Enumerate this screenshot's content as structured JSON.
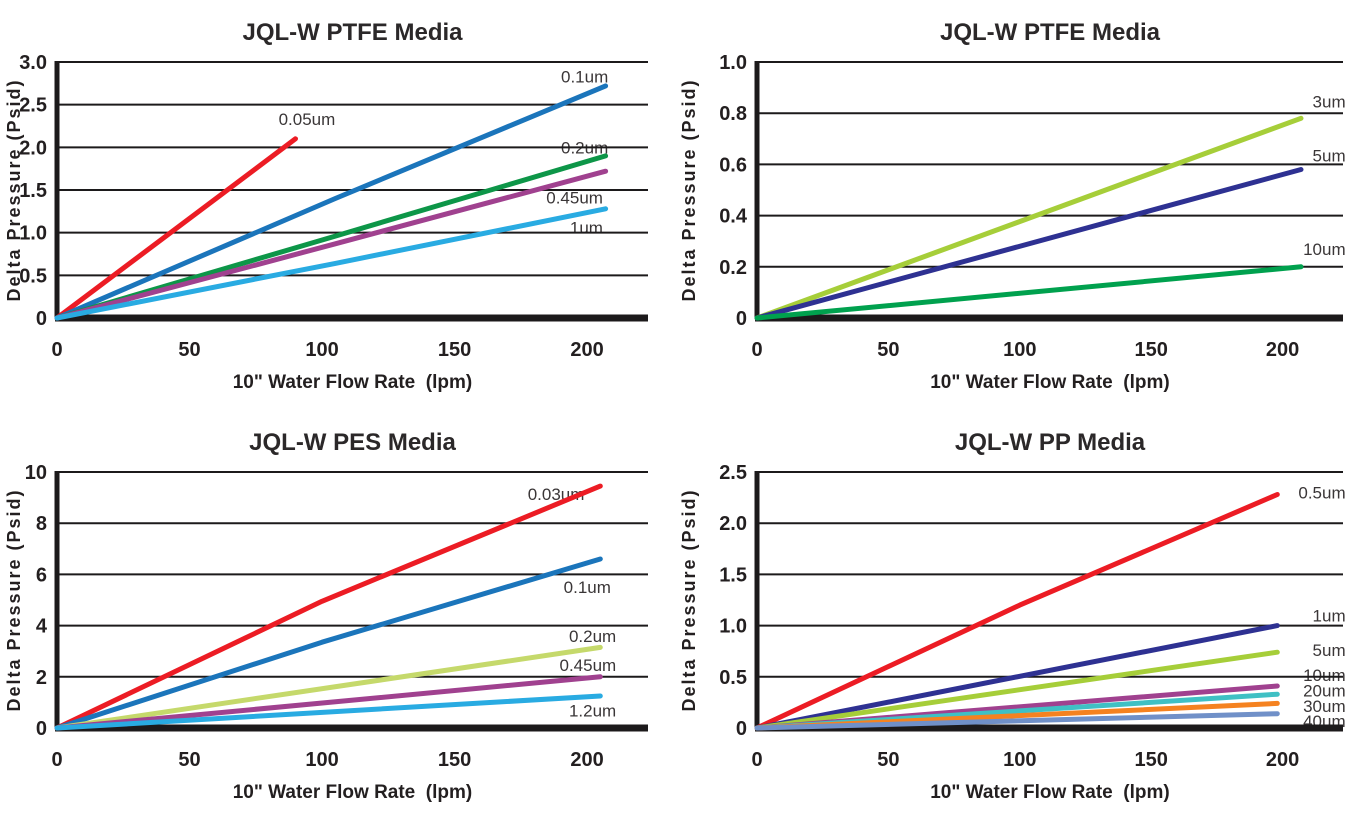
{
  "colors": {
    "background": "#ffffff",
    "grid_line": "#1c1a1b",
    "axis_line": "#1c1a1b",
    "title_text": "#2b2829",
    "tick_text": "#231f20",
    "series_label_text": "#3a3637"
  },
  "chart_data": [
    {
      "type": "line",
      "title": "JQL-W PTFE Media",
      "xlabel": "10\" Water Flow Rate  (lpm)",
      "ylabel": "Delta Pressure (Psid)",
      "xlim": [
        0,
        223
      ],
      "ylim": [
        0,
        3.0
      ],
      "grid": "horizontal",
      "legend_position": "inline-labels",
      "xticks": [
        {
          "v": 0,
          "label": "0"
        },
        {
          "v": 50,
          "label": "50"
        },
        {
          "v": 100,
          "label": "100"
        },
        {
          "v": 150,
          "label": "150"
        },
        {
          "v": 200,
          "label": "200"
        }
      ],
      "yticks": [
        {
          "v": 0,
          "label": "0"
        },
        {
          "v": 0.5,
          "label": "0.5"
        },
        {
          "v": 1.0,
          "label": "1.0"
        },
        {
          "v": 1.5,
          "label": "1.5"
        },
        {
          "v": 2.0,
          "label": "2.0"
        },
        {
          "v": 2.5,
          "label": "2.5"
        },
        {
          "v": 3.0,
          "label": "3.0"
        }
      ],
      "series": [
        {
          "name": "0.05um",
          "color": "#ec1c24",
          "points": [
            [
              0,
              0
            ],
            [
              90,
              2.1
            ]
          ],
          "label": {
            "x": 105,
            "y": 2.33,
            "anchor": "end"
          }
        },
        {
          "name": "0.1um",
          "color": "#1b75bb",
          "points": [
            [
              0,
              0
            ],
            [
              105,
              1.4
            ],
            [
              207,
              2.72
            ]
          ],
          "label": {
            "x": 208,
            "y": 2.83,
            "anchor": "end"
          }
        },
        {
          "name": "0.2um",
          "color": "#0d9648",
          "points": [
            [
              0,
              0
            ],
            [
              105,
              0.96
            ],
            [
              207,
              1.9
            ]
          ],
          "label": {
            "x": 208,
            "y": 2.0,
            "anchor": "end"
          }
        },
        {
          "name": "0.45um",
          "color": "#a0418f",
          "points": [
            [
              0,
              0
            ],
            [
              105,
              0.87
            ],
            [
              207,
              1.72
            ]
          ],
          "label": {
            "x": 206,
            "y": 1.41,
            "anchor": "end"
          }
        },
        {
          "name": "1um",
          "color": "#29abe2",
          "points": [
            [
              0,
              0
            ],
            [
              105,
              0.64
            ],
            [
              207,
              1.28
            ]
          ],
          "label": {
            "x": 206,
            "y": 1.06,
            "anchor": "end"
          }
        }
      ]
    },
    {
      "type": "line",
      "title": "JQL-W PTFE Media",
      "xlabel": "10\" Water Flow Rate  (lpm)",
      "ylabel": "Delta Pressure (Psid)",
      "xlim": [
        0,
        223
      ],
      "ylim": [
        0,
        1.0
      ],
      "grid": "horizontal",
      "legend_position": "inline-labels",
      "xticks": [
        {
          "v": 0,
          "label": "0"
        },
        {
          "v": 50,
          "label": "50"
        },
        {
          "v": 100,
          "label": "100"
        },
        {
          "v": 150,
          "label": "150"
        },
        {
          "v": 200,
          "label": "200"
        }
      ],
      "yticks": [
        {
          "v": 0,
          "label": "0"
        },
        {
          "v": 0.2,
          "label": "0.2"
        },
        {
          "v": 0.4,
          "label": "0.4"
        },
        {
          "v": 0.6,
          "label": "0.6"
        },
        {
          "v": 0.8,
          "label": "0.8"
        },
        {
          "v": 1.0,
          "label": "1.0"
        }
      ],
      "series": [
        {
          "name": "3um",
          "color": "#a6ce39",
          "points": [
            [
              0,
              0
            ],
            [
              207,
              0.78
            ]
          ],
          "label": {
            "x": 224,
            "y": 0.845,
            "anchor": "end"
          }
        },
        {
          "name": "5um",
          "color": "#2e3192",
          "points": [
            [
              0,
              0
            ],
            [
              207,
              0.58
            ]
          ],
          "label": {
            "x": 224,
            "y": 0.635,
            "anchor": "end"
          }
        },
        {
          "name": "10um",
          "color": "#00a14e",
          "points": [
            [
              0,
              0
            ],
            [
              207,
              0.2
            ]
          ],
          "label": {
            "x": 224,
            "y": 0.27,
            "anchor": "end"
          }
        }
      ]
    },
    {
      "type": "line",
      "title": "JQL-W PES Media",
      "xlabel": "10\" Water Flow Rate  (lpm)",
      "ylabel": "Delta Pressure (Psid)",
      "xlim": [
        0,
        223
      ],
      "ylim": [
        0,
        10
      ],
      "grid": "horizontal",
      "legend_position": "inline-labels",
      "xticks": [
        {
          "v": 0,
          "label": "0"
        },
        {
          "v": 50,
          "label": "50"
        },
        {
          "v": 100,
          "label": "100"
        },
        {
          "v": 150,
          "label": "150"
        },
        {
          "v": 200,
          "label": "200"
        }
      ],
      "yticks": [
        {
          "v": 0,
          "label": "0"
        },
        {
          "v": 2,
          "label": "2"
        },
        {
          "v": 4,
          "label": "4"
        },
        {
          "v": 6,
          "label": "6"
        },
        {
          "v": 8,
          "label": "8"
        },
        {
          "v": 10,
          "label": "10"
        }
      ],
      "series": [
        {
          "name": "0.03um",
          "color": "#ec1c24",
          "points": [
            [
              0,
              0
            ],
            [
              100,
              4.95
            ],
            [
              205,
              9.45
            ]
          ],
          "label": {
            "x": 199,
            "y": 9.15,
            "anchor": "end"
          }
        },
        {
          "name": "0.1um",
          "color": "#1b75bb",
          "points": [
            [
              0,
              0
            ],
            [
              100,
              3.35
            ],
            [
              205,
              6.6
            ]
          ],
          "label": {
            "x": 209,
            "y": 5.5,
            "anchor": "end"
          }
        },
        {
          "name": "0.2um",
          "color": "#c5d96b",
          "points": [
            [
              0,
              0
            ],
            [
              205,
              3.15
            ]
          ],
          "label": {
            "x": 211,
            "y": 3.6,
            "anchor": "end"
          }
        },
        {
          "name": "0.45um",
          "color": "#a0418f",
          "points": [
            [
              0,
              0
            ],
            [
              205,
              2.0
            ]
          ],
          "label": {
            "x": 211,
            "y": 2.47,
            "anchor": "end"
          }
        },
        {
          "name": "1.2um",
          "color": "#29abe2",
          "points": [
            [
              0,
              0
            ],
            [
              205,
              1.25
            ]
          ],
          "label": {
            "x": 211,
            "y": 0.68,
            "anchor": "end"
          }
        }
      ]
    },
    {
      "type": "line",
      "title": "JQL-W PP Media",
      "xlabel": "10\" Water Flow Rate  (lpm)",
      "ylabel": "Delta Pressure (Psid)",
      "xlim": [
        0,
        223
      ],
      "ylim": [
        0,
        2.5
      ],
      "grid": "horizontal",
      "legend_position": "inline-labels",
      "xticks": [
        {
          "v": 0,
          "label": "0"
        },
        {
          "v": 50,
          "label": "50"
        },
        {
          "v": 100,
          "label": "100"
        },
        {
          "v": 150,
          "label": "150"
        },
        {
          "v": 200,
          "label": "200"
        }
      ],
      "yticks": [
        {
          "v": 0,
          "label": "0"
        },
        {
          "v": 0.5,
          "label": "0.5"
        },
        {
          "v": 1.0,
          "label": "1.0"
        },
        {
          "v": 1.5,
          "label": "1.5"
        },
        {
          "v": 2.0,
          "label": "2.0"
        },
        {
          "v": 2.5,
          "label": "2.5"
        }
      ],
      "series": [
        {
          "name": "0.5um",
          "color": "#ec1c24",
          "points": [
            [
              0,
              0
            ],
            [
              100,
              1.2
            ],
            [
              198,
              2.28
            ]
          ],
          "label": {
            "x": 224,
            "y": 2.3,
            "anchor": "end"
          }
        },
        {
          "name": "1um",
          "color": "#2e3192",
          "points": [
            [
              0,
              0
            ],
            [
              198,
              1.0
            ]
          ],
          "label": {
            "x": 224,
            "y": 1.1,
            "anchor": "end"
          }
        },
        {
          "name": "5um",
          "color": "#a6ce39",
          "points": [
            [
              0,
              0
            ],
            [
              198,
              0.74
            ]
          ],
          "label": {
            "x": 224,
            "y": 0.76,
            "anchor": "end"
          }
        },
        {
          "name": "10um",
          "color": "#a0418f",
          "points": [
            [
              0,
              0
            ],
            [
              198,
              0.41
            ]
          ],
          "label": {
            "x": 224,
            "y": 0.52,
            "anchor": "end"
          }
        },
        {
          "name": "20um",
          "color": "#3fc0c4",
          "points": [
            [
              0,
              0
            ],
            [
              198,
              0.33
            ]
          ],
          "label": {
            "x": 224,
            "y": 0.365,
            "anchor": "end"
          }
        },
        {
          "name": "30um",
          "color": "#f58220",
          "points": [
            [
              0,
              0
            ],
            [
              198,
              0.24
            ]
          ],
          "label": {
            "x": 224,
            "y": 0.215,
            "anchor": "end"
          }
        },
        {
          "name": "40um",
          "color": "#7090c8",
          "points": [
            [
              0,
              0
            ],
            [
              198,
              0.14
            ]
          ],
          "label": {
            "x": 224,
            "y": 0.07,
            "anchor": "end"
          }
        }
      ]
    }
  ]
}
